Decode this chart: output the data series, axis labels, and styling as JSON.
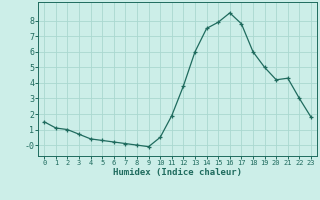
{
  "x": [
    0,
    1,
    2,
    3,
    4,
    5,
    6,
    7,
    8,
    9,
    10,
    11,
    12,
    13,
    14,
    15,
    16,
    17,
    18,
    19,
    20,
    21,
    22,
    23
  ],
  "y": [
    1.5,
    1.1,
    1.0,
    0.7,
    0.4,
    0.3,
    0.2,
    0.1,
    0.0,
    -0.1,
    0.5,
    1.9,
    3.8,
    6.0,
    7.5,
    7.9,
    8.5,
    7.8,
    6.0,
    5.0,
    4.2,
    4.3,
    3.0,
    1.8
  ],
  "xlabel": "Humidex (Indice chaleur)",
  "ylim": [
    -0.7,
    9.2
  ],
  "xlim": [
    -0.5,
    23.5
  ],
  "yticks": [
    0,
    1,
    2,
    3,
    4,
    5,
    6,
    7,
    8
  ],
  "ytick_labels": [
    "-0",
    "1",
    "2",
    "3",
    "4",
    "5",
    "6",
    "7",
    "8"
  ],
  "xticks": [
    0,
    1,
    2,
    3,
    4,
    5,
    6,
    7,
    8,
    9,
    10,
    11,
    12,
    13,
    14,
    15,
    16,
    17,
    18,
    19,
    20,
    21,
    22,
    23
  ],
  "line_color": "#1f6b5e",
  "marker": "+",
  "bg_color": "#cceee8",
  "grid_color": "#aad8d0",
  "spine_color": "#1f6b5e",
  "tick_color": "#1f6b5e",
  "label_color": "#1f6b5e"
}
